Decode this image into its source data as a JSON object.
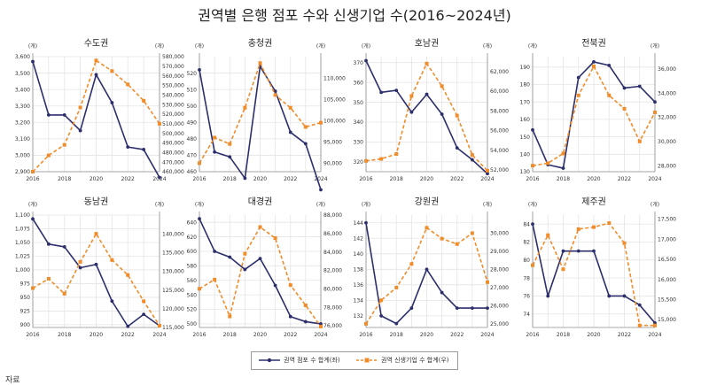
{
  "title": "권역별 은행 점포 수와 신생기업 수(2016~2024년)",
  "colors": {
    "left": "#2c2f6b",
    "right": "#f08c2a",
    "grid": "#e4e4e4",
    "axis": "#8c8c8c"
  },
  "legend": {
    "left_series": "권역 점포 수 합계(좌)",
    "right_series": "권역 신생기업 수 합계(우)"
  },
  "source_label": "자료",
  "chart_data": [
    {
      "type": "line",
      "title": "수도권",
      "left_unit": "(개)",
      "right_unit": "(개)",
      "x": [
        2016,
        2017,
        2018,
        2019,
        2020,
        2021,
        2022,
        2023,
        2024
      ],
      "x_ticks": [
        "2016",
        "2018",
        "2020",
        "2022",
        "2024"
      ],
      "left_ylim": [
        2900,
        3600
      ],
      "left_ticks": [
        "2,900",
        "3,000",
        "3,100",
        "3,200",
        "3,300",
        "3,400",
        "3,500",
        "3,600"
      ],
      "right_ylim": [
        460000,
        580000
      ],
      "right_ticks": [
        "460,000",
        "470,000",
        "480,000",
        "490,000",
        "500,000",
        "510,000",
        "520,000",
        "530,000",
        "540,000",
        "550,000",
        "560,000",
        "570,000",
        "580,000"
      ],
      "series": [
        {
          "name": "권역 점포 수 합계(좌)",
          "axis": "left",
          "values": [
            3570,
            3245,
            3245,
            3150,
            3490,
            3320,
            3050,
            3035,
            2865
          ]
        },
        {
          "name": "권역 신생기업 수 합계(우)",
          "axis": "right",
          "values": [
            460000,
            477000,
            488000,
            527000,
            576000,
            565000,
            551000,
            534000,
            510000
          ]
        }
      ]
    },
    {
      "type": "line",
      "title": "충청권",
      "left_unit": "(개)",
      "right_unit": "(개)",
      "x": [
        2016,
        2017,
        2018,
        2019,
        2020,
        2021,
        2022,
        2023,
        2024
      ],
      "x_ticks": [
        "2016",
        "2018",
        "2020",
        "2022",
        "2024"
      ],
      "left_ylim": [
        460,
        530
      ],
      "left_ticks": [
        "460",
        "470",
        "480",
        "490",
        "500",
        "510",
        "520"
      ],
      "right_ylim": [
        88000,
        115000
      ],
      "right_ticks": [
        "90,000",
        "95,000",
        "100,000",
        "105,000",
        "110,000"
      ],
      "series": [
        {
          "name": "권역 점포 수 합계(좌)",
          "axis": "left",
          "values": [
            522,
            472,
            469,
            456,
            524,
            509,
            484,
            477,
            449
          ]
        },
        {
          "name": "권역 신생기업 수 합계(우)",
          "axis": "right",
          "values": [
            90000,
            96000,
            94500,
            103000,
            113500,
            106000,
            103000,
            98500,
            99500
          ]
        }
      ]
    },
    {
      "type": "line",
      "title": "호남권",
      "left_unit": "(개)",
      "right_unit": "(개)",
      "x": [
        2016,
        2017,
        2018,
        2019,
        2020,
        2021,
        2022,
        2023,
        2024
      ],
      "x_ticks": [
        "2016",
        "2018",
        "2020",
        "2022",
        "2024"
      ],
      "left_ylim": [
        315,
        373
      ],
      "left_ticks": [
        "320",
        "330",
        "340",
        "350",
        "360",
        "370"
      ],
      "right_ylim": [
        51800,
        63500
      ],
      "right_ticks": [
        "52,000",
        "54,000",
        "56,000",
        "58,000",
        "60,000",
        "62,000"
      ],
      "series": [
        {
          "name": "권역 점포 수 합계(좌)",
          "axis": "left",
          "values": [
            371,
            355,
            356,
            345,
            354,
            344,
            327,
            321,
            314
          ]
        },
        {
          "name": "권역 신생기업 수 합계(우)",
          "axis": "right",
          "values": [
            52900,
            53100,
            53600,
            59500,
            62800,
            60500,
            57500,
            53500,
            51900
          ]
        }
      ]
    },
    {
      "type": "line",
      "title": "전북권",
      "left_unit": "(개)",
      "right_unit": "(개)",
      "x": [
        2016,
        2017,
        2018,
        2019,
        2020,
        2021,
        2022,
        2023,
        2024
      ],
      "x_ticks": [
        "2016",
        "2018",
        "2020",
        "2022",
        "2024"
      ],
      "left_ylim": [
        130,
        196
      ],
      "left_ticks": [
        "130",
        "140",
        "150",
        "160",
        "170",
        "180",
        "190"
      ],
      "right_ylim": [
        27500,
        37000
      ],
      "right_ticks": [
        "28,000",
        "30,000",
        "32,000",
        "34,000",
        "36,000"
      ],
      "series": [
        {
          "name": "권역 점포 수 합계(좌)",
          "axis": "left",
          "values": [
            154,
            134,
            132,
            184,
            193,
            191,
            178,
            179,
            170
          ]
        },
        {
          "name": "권역 신생기업 수 합계(우)",
          "axis": "right",
          "values": [
            28000,
            28200,
            29000,
            33800,
            36200,
            33800,
            32700,
            30000,
            32400
          ]
        }
      ]
    },
    {
      "type": "line",
      "title": "동남권",
      "left_unit": "(개)",
      "right_unit": "(개)",
      "x": [
        2016,
        2017,
        2018,
        2019,
        2020,
        2021,
        2022,
        2023,
        2024
      ],
      "x_ticks": [
        "2016",
        "2018",
        "2020",
        "2022",
        "2024"
      ],
      "left_ylim": [
        895,
        1100
      ],
      "left_ticks": [
        "900",
        "925",
        "950",
        "975",
        "1,000",
        "1,025",
        "1,050",
        "1,075",
        "1,100"
      ],
      "right_ylim": [
        115000,
        145000
      ],
      "right_ticks": [
        "115,000",
        "120,000",
        "125,000",
        "130,000",
        "135,000",
        "140,000"
      ],
      "series": [
        {
          "name": "권역 점포 수 합계(좌)",
          "axis": "left",
          "values": [
            1093,
            1047,
            1042,
            1004,
            1010,
            943,
            897,
            919,
            898
          ]
        },
        {
          "name": "권역 신생기업 수 합계(우)",
          "axis": "right",
          "values": [
            125500,
            128000,
            124000,
            132500,
            140000,
            133000,
            129000,
            122000,
            115500
          ]
        }
      ]
    },
    {
      "type": "line",
      "title": "대경권",
      "left_unit": "(개)",
      "right_unit": "(개)",
      "x": [
        2016,
        2017,
        2018,
        2019,
        2020,
        2021,
        2022,
        2023,
        2024
      ],
      "x_ticks": [
        "2016",
        "2018",
        "2020",
        "2022",
        "2024"
      ],
      "left_ylim": [
        495,
        650
      ],
      "left_ticks": [
        "500",
        "520",
        "540",
        "560",
        "580",
        "600",
        "620",
        "640"
      ],
      "right_ylim": [
        75800,
        88000
      ],
      "right_ticks": [
        "76,000",
        "78,000",
        "80,000",
        "82,000",
        "84,000",
        "86,000",
        "88,000"
      ],
      "series": [
        {
          "name": "권역 점포 수 합계(좌)",
          "axis": "left",
          "values": [
            645,
            600,
            592,
            575,
            590,
            553,
            510,
            503,
            500
          ]
        },
        {
          "name": "권역 신생기업 수 합계(우)",
          "axis": "right",
          "values": [
            80000,
            81000,
            77000,
            83800,
            86700,
            85500,
            80400,
            78200,
            75900
          ]
        }
      ]
    },
    {
      "type": "line",
      "title": "강원권",
      "left_unit": "(개)",
      "right_unit": "(개)",
      "x": [
        2016,
        2017,
        2018,
        2019,
        2020,
        2021,
        2022,
        2023,
        2024
      ],
      "x_ticks": [
        "2016",
        "2018",
        "2020",
        "2022",
        "2024"
      ],
      "left_ylim": [
        130.5,
        145
      ],
      "left_ticks": [
        "132",
        "134",
        "136",
        "138",
        "140",
        "142",
        "144"
      ],
      "right_ylim": [
        24800,
        31000
      ],
      "right_ticks": [
        "25,000",
        "26,000",
        "27,000",
        "28,000",
        "29,000",
        "30,000"
      ],
      "series": [
        {
          "name": "권역 점포 수 합계(좌)",
          "axis": "left",
          "values": [
            144,
            132,
            131,
            133,
            138,
            135,
            133,
            133,
            133
          ]
        },
        {
          "name": "권역 신생기업 수 합계(우)",
          "axis": "right",
          "values": [
            25000,
            26300,
            27000,
            28300,
            30300,
            29700,
            29400,
            30000,
            27300
          ]
        }
      ]
    },
    {
      "type": "line",
      "title": "제주권",
      "left_unit": "(개)",
      "right_unit": "(개)",
      "x": [
        2016,
        2017,
        2018,
        2019,
        2020,
        2021,
        2022,
        2023,
        2024
      ],
      "x_ticks": [
        "2016",
        "2018",
        "2020",
        "2022",
        "2024"
      ],
      "left_ylim": [
        72.5,
        85
      ],
      "left_ticks": [
        "74",
        "76",
        "78",
        "80",
        "82",
        "84"
      ],
      "right_ylim": [
        14800,
        17600
      ],
      "right_ticks": [
        "15,000",
        "15,500",
        "16,000",
        "16,500",
        "17,000",
        "17,500"
      ],
      "series": [
        {
          "name": "권역 점포 수 합계(좌)",
          "axis": "left",
          "values": [
            84,
            76,
            81,
            81,
            81,
            76,
            76,
            75,
            73
          ]
        },
        {
          "name": "권역 신생기업 수 합계(우)",
          "axis": "right",
          "values": [
            16350,
            17100,
            16250,
            17250,
            17300,
            17400,
            16900,
            14850,
            14850
          ]
        }
      ]
    }
  ]
}
